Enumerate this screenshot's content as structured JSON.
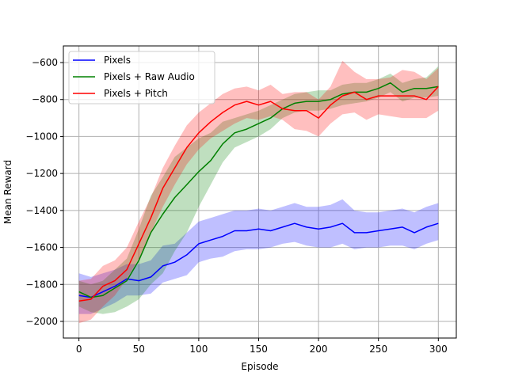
{
  "chart_data": {
    "type": "line",
    "title": "",
    "xlabel": "Episode",
    "ylabel": "Mean Reward",
    "xlim": [
      -13,
      315
    ],
    "ylim": [
      -2090,
      -510
    ],
    "xticks": [
      0,
      50,
      100,
      150,
      200,
      250,
      300
    ],
    "xtick_labels": [
      "0",
      "50",
      "100",
      "150",
      "200",
      "250",
      "300"
    ],
    "yticks": [
      -2000,
      -1800,
      -1600,
      -1400,
      -1200,
      -1000,
      -800,
      -600
    ],
    "ytick_labels": [
      "−2000",
      "−1800",
      "−1600",
      "−1400",
      "−1200",
      "−1000",
      "−800",
      "−600"
    ],
    "grid": true,
    "legend_position": "upper left",
    "series": [
      {
        "name": "Pixels",
        "color": "#0000ff",
        "fill_color": "#0000ff",
        "x": [
          0,
          10,
          20,
          30,
          40,
          50,
          60,
          70,
          80,
          90,
          100,
          110,
          120,
          130,
          140,
          150,
          160,
          170,
          180,
          190,
          200,
          210,
          220,
          230,
          240,
          250,
          260,
          270,
          280,
          290,
          300
        ],
        "y": [
          -1860,
          -1870,
          -1840,
          -1810,
          -1770,
          -1780,
          -1760,
          -1700,
          -1680,
          -1640,
          -1580,
          -1560,
          -1540,
          -1510,
          -1510,
          -1500,
          -1510,
          -1490,
          -1470,
          -1490,
          -1500,
          -1490,
          -1470,
          -1520,
          -1520,
          -1510,
          -1500,
          -1490,
          -1520,
          -1490,
          -1470
        ],
        "lower": [
          -1960,
          -1960,
          -1930,
          -1900,
          -1860,
          -1860,
          -1850,
          -1790,
          -1770,
          -1750,
          -1680,
          -1660,
          -1650,
          -1620,
          -1610,
          -1610,
          -1600,
          -1580,
          -1570,
          -1590,
          -1600,
          -1600,
          -1580,
          -1610,
          -1600,
          -1600,
          -1590,
          -1590,
          -1610,
          -1580,
          -1560
        ],
        "upper": [
          -1740,
          -1760,
          -1740,
          -1720,
          -1690,
          -1690,
          -1670,
          -1590,
          -1580,
          -1520,
          -1460,
          -1440,
          -1420,
          -1400,
          -1400,
          -1390,
          -1400,
          -1380,
          -1360,
          -1380,
          -1380,
          -1370,
          -1340,
          -1400,
          -1410,
          -1410,
          -1400,
          -1390,
          -1410,
          -1380,
          -1360
        ]
      },
      {
        "name": "Pixels + Raw Audio",
        "color": "#008000",
        "fill_color": "#008000",
        "x": [
          0,
          10,
          20,
          30,
          40,
          50,
          60,
          70,
          80,
          90,
          100,
          110,
          120,
          130,
          140,
          150,
          160,
          170,
          180,
          190,
          200,
          210,
          220,
          230,
          240,
          250,
          260,
          270,
          280,
          290,
          300
        ],
        "y": [
          -1840,
          -1870,
          -1860,
          -1820,
          -1780,
          -1670,
          -1520,
          -1420,
          -1330,
          -1260,
          -1190,
          -1130,
          -1040,
          -980,
          -960,
          -930,
          -900,
          -850,
          -820,
          -810,
          -810,
          -800,
          -770,
          -760,
          -760,
          -740,
          -710,
          -760,
          -740,
          -740,
          -730
        ],
        "lower": [
          -1920,
          -1950,
          -1960,
          -1950,
          -1920,
          -1880,
          -1800,
          -1740,
          -1620,
          -1520,
          -1380,
          -1260,
          -1140,
          -1060,
          -1030,
          -1000,
          -960,
          -900,
          -870,
          -860,
          -860,
          -850,
          -830,
          -820,
          -810,
          -790,
          -760,
          -810,
          -790,
          -790,
          -780
        ],
        "upper": [
          -1780,
          -1800,
          -1780,
          -1720,
          -1660,
          -1500,
          -1320,
          -1220,
          -1110,
          -1060,
          -1010,
          -980,
          -920,
          -900,
          -880,
          -860,
          -830,
          -800,
          -770,
          -760,
          -750,
          -750,
          -720,
          -710,
          -710,
          -690,
          -660,
          -710,
          -690,
          -680,
          -620
        ]
      },
      {
        "name": "Pixels + Pitch",
        "color": "#ff0000",
        "fill_color": "#ff0000",
        "x": [
          0,
          10,
          20,
          30,
          40,
          50,
          60,
          70,
          80,
          90,
          100,
          110,
          120,
          130,
          140,
          150,
          160,
          170,
          180,
          190,
          200,
          210,
          220,
          230,
          240,
          250,
          260,
          270,
          280,
          290,
          300
        ],
        "y": [
          -1890,
          -1880,
          -1810,
          -1780,
          -1720,
          -1580,
          -1440,
          -1280,
          -1170,
          -1060,
          -980,
          -920,
          -870,
          -830,
          -810,
          -830,
          -810,
          -850,
          -860,
          -860,
          -900,
          -830,
          -780,
          -760,
          -800,
          -780,
          -780,
          -780,
          -780,
          -800,
          -730
        ],
        "lower": [
          -2010,
          -1990,
          -1920,
          -1860,
          -1770,
          -1660,
          -1520,
          -1380,
          -1260,
          -1150,
          -1070,
          -1010,
          -970,
          -930,
          -900,
          -910,
          -890,
          -910,
          -960,
          -970,
          -1000,
          -930,
          -880,
          -870,
          -910,
          -880,
          -890,
          -900,
          -900,
          -900,
          -860
        ],
        "upper": [
          -1780,
          -1770,
          -1700,
          -1670,
          -1600,
          -1460,
          -1330,
          -1170,
          -1050,
          -940,
          -870,
          -820,
          -770,
          -740,
          -730,
          -750,
          -720,
          -770,
          -760,
          -760,
          -800,
          -730,
          -590,
          -650,
          -690,
          -690,
          -680,
          -640,
          -650,
          -690,
          -630
        ]
      }
    ]
  }
}
